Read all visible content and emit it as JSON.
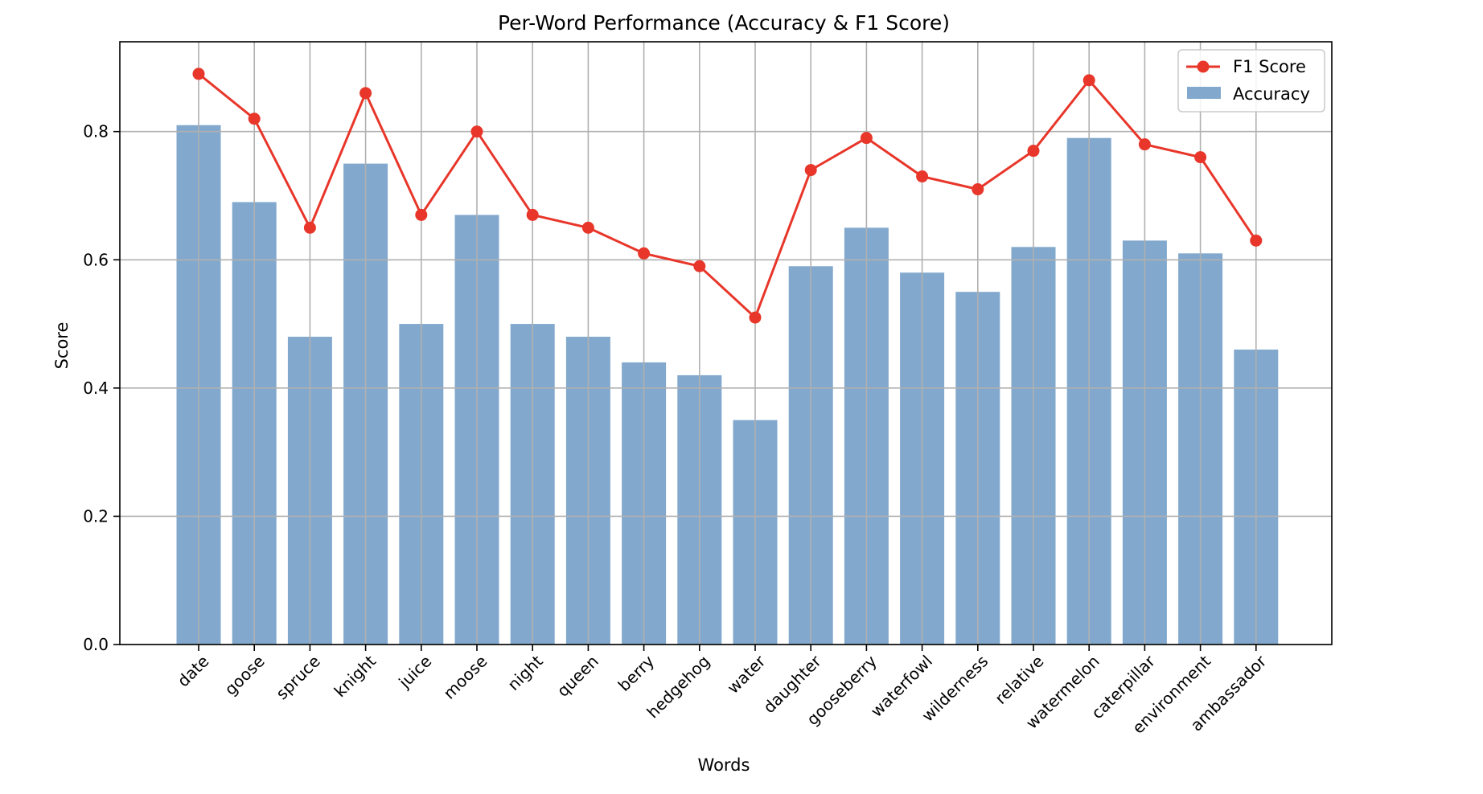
{
  "chart_data": {
    "type": "bar",
    "title": "Per-Word Performance (Accuracy & F1 Score)",
    "xlabel": "Words",
    "ylabel": "Score",
    "ylim": [
      0.0,
      0.94
    ],
    "yticks": [
      0.0,
      0.2,
      0.4,
      0.6,
      0.8
    ],
    "ytick_labels": [
      "0.0",
      "0.2",
      "0.4",
      "0.6",
      "0.8"
    ],
    "grid": true,
    "legend_position": "top-right",
    "categories": [
      "date",
      "goose",
      "spruce",
      "knight",
      "juice",
      "moose",
      "night",
      "queen",
      "berry",
      "hedgehog",
      "water",
      "daughter",
      "gooseberry",
      "waterfowl",
      "wilderness",
      "relative",
      "watermelon",
      "caterpillar",
      "environment",
      "ambassador"
    ],
    "series": [
      {
        "name": "Accuracy",
        "kind": "bar",
        "color": "#82a9cd",
        "values": [
          0.81,
          0.69,
          0.48,
          0.75,
          0.5,
          0.67,
          0.5,
          0.48,
          0.44,
          0.42,
          0.35,
          0.59,
          0.65,
          0.58,
          0.55,
          0.62,
          0.79,
          0.63,
          0.61,
          0.46
        ]
      },
      {
        "name": "F1 Score",
        "kind": "line",
        "color": "#e8362a",
        "values": [
          0.89,
          0.82,
          0.65,
          0.86,
          0.67,
          0.8,
          0.67,
          0.65,
          0.61,
          0.59,
          0.51,
          0.74,
          0.79,
          0.73,
          0.71,
          0.77,
          0.88,
          0.78,
          0.76,
          0.63
        ]
      }
    ]
  }
}
